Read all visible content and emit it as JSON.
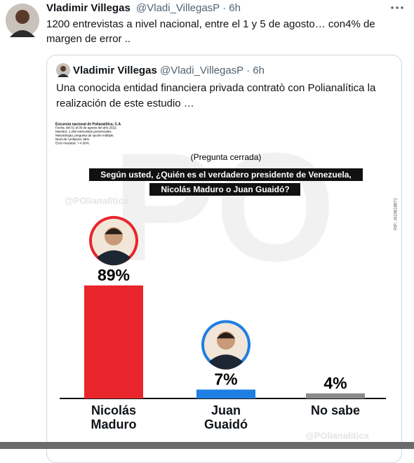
{
  "tweet": {
    "name": "Vladimir Villegas",
    "handle_line": "@Vladi_VillegasP · 6h",
    "text_lines": [
      "1200 entrevistas a nivel nacional, entre el 1 y 5 de agosto… con4% de",
      "margen de error .."
    ]
  },
  "quoted": {
    "name": "Vladimir Villegas",
    "handle_line": "@Vladi_VillegasP · 6h",
    "text_lines": [
      "Una conocida entidad financiera privada contratò con Polianalítica la",
      "realización de este estudio …"
    ]
  },
  "chart_data": {
    "type": "bar",
    "notes": [
      "Encuesta nacional de Polianalítica, C.A",
      "Fecha: del 01 al 05 de agosto del año 2022.",
      "Muestra: 1.200 entrevistas presenciales.",
      "Metodología: pregunta de opción múltiple.",
      "Nivel de confianza: 95%.",
      "Error muestral: +-4.00%."
    ],
    "subtitle": "(Pregunta cerrada)",
    "title_lines": [
      "Según usted, ¿Quién es el verdadero presidente de Venezuela,",
      "Nicolás Maduro o Juan Guaidó?"
    ],
    "watermarks": [
      "@POlianalitica",
      "@POlianalitica"
    ],
    "rif": "RIF: J410618671",
    "categories": [
      "Nicolás Maduro",
      "Juan Guaidó",
      "No sabe"
    ],
    "values": [
      89,
      7,
      4
    ],
    "value_labels": [
      "89%",
      "7%",
      "4%"
    ],
    "colors": [
      "#e8262b",
      "#1f7ee2",
      "#8a8a8a"
    ]
  }
}
